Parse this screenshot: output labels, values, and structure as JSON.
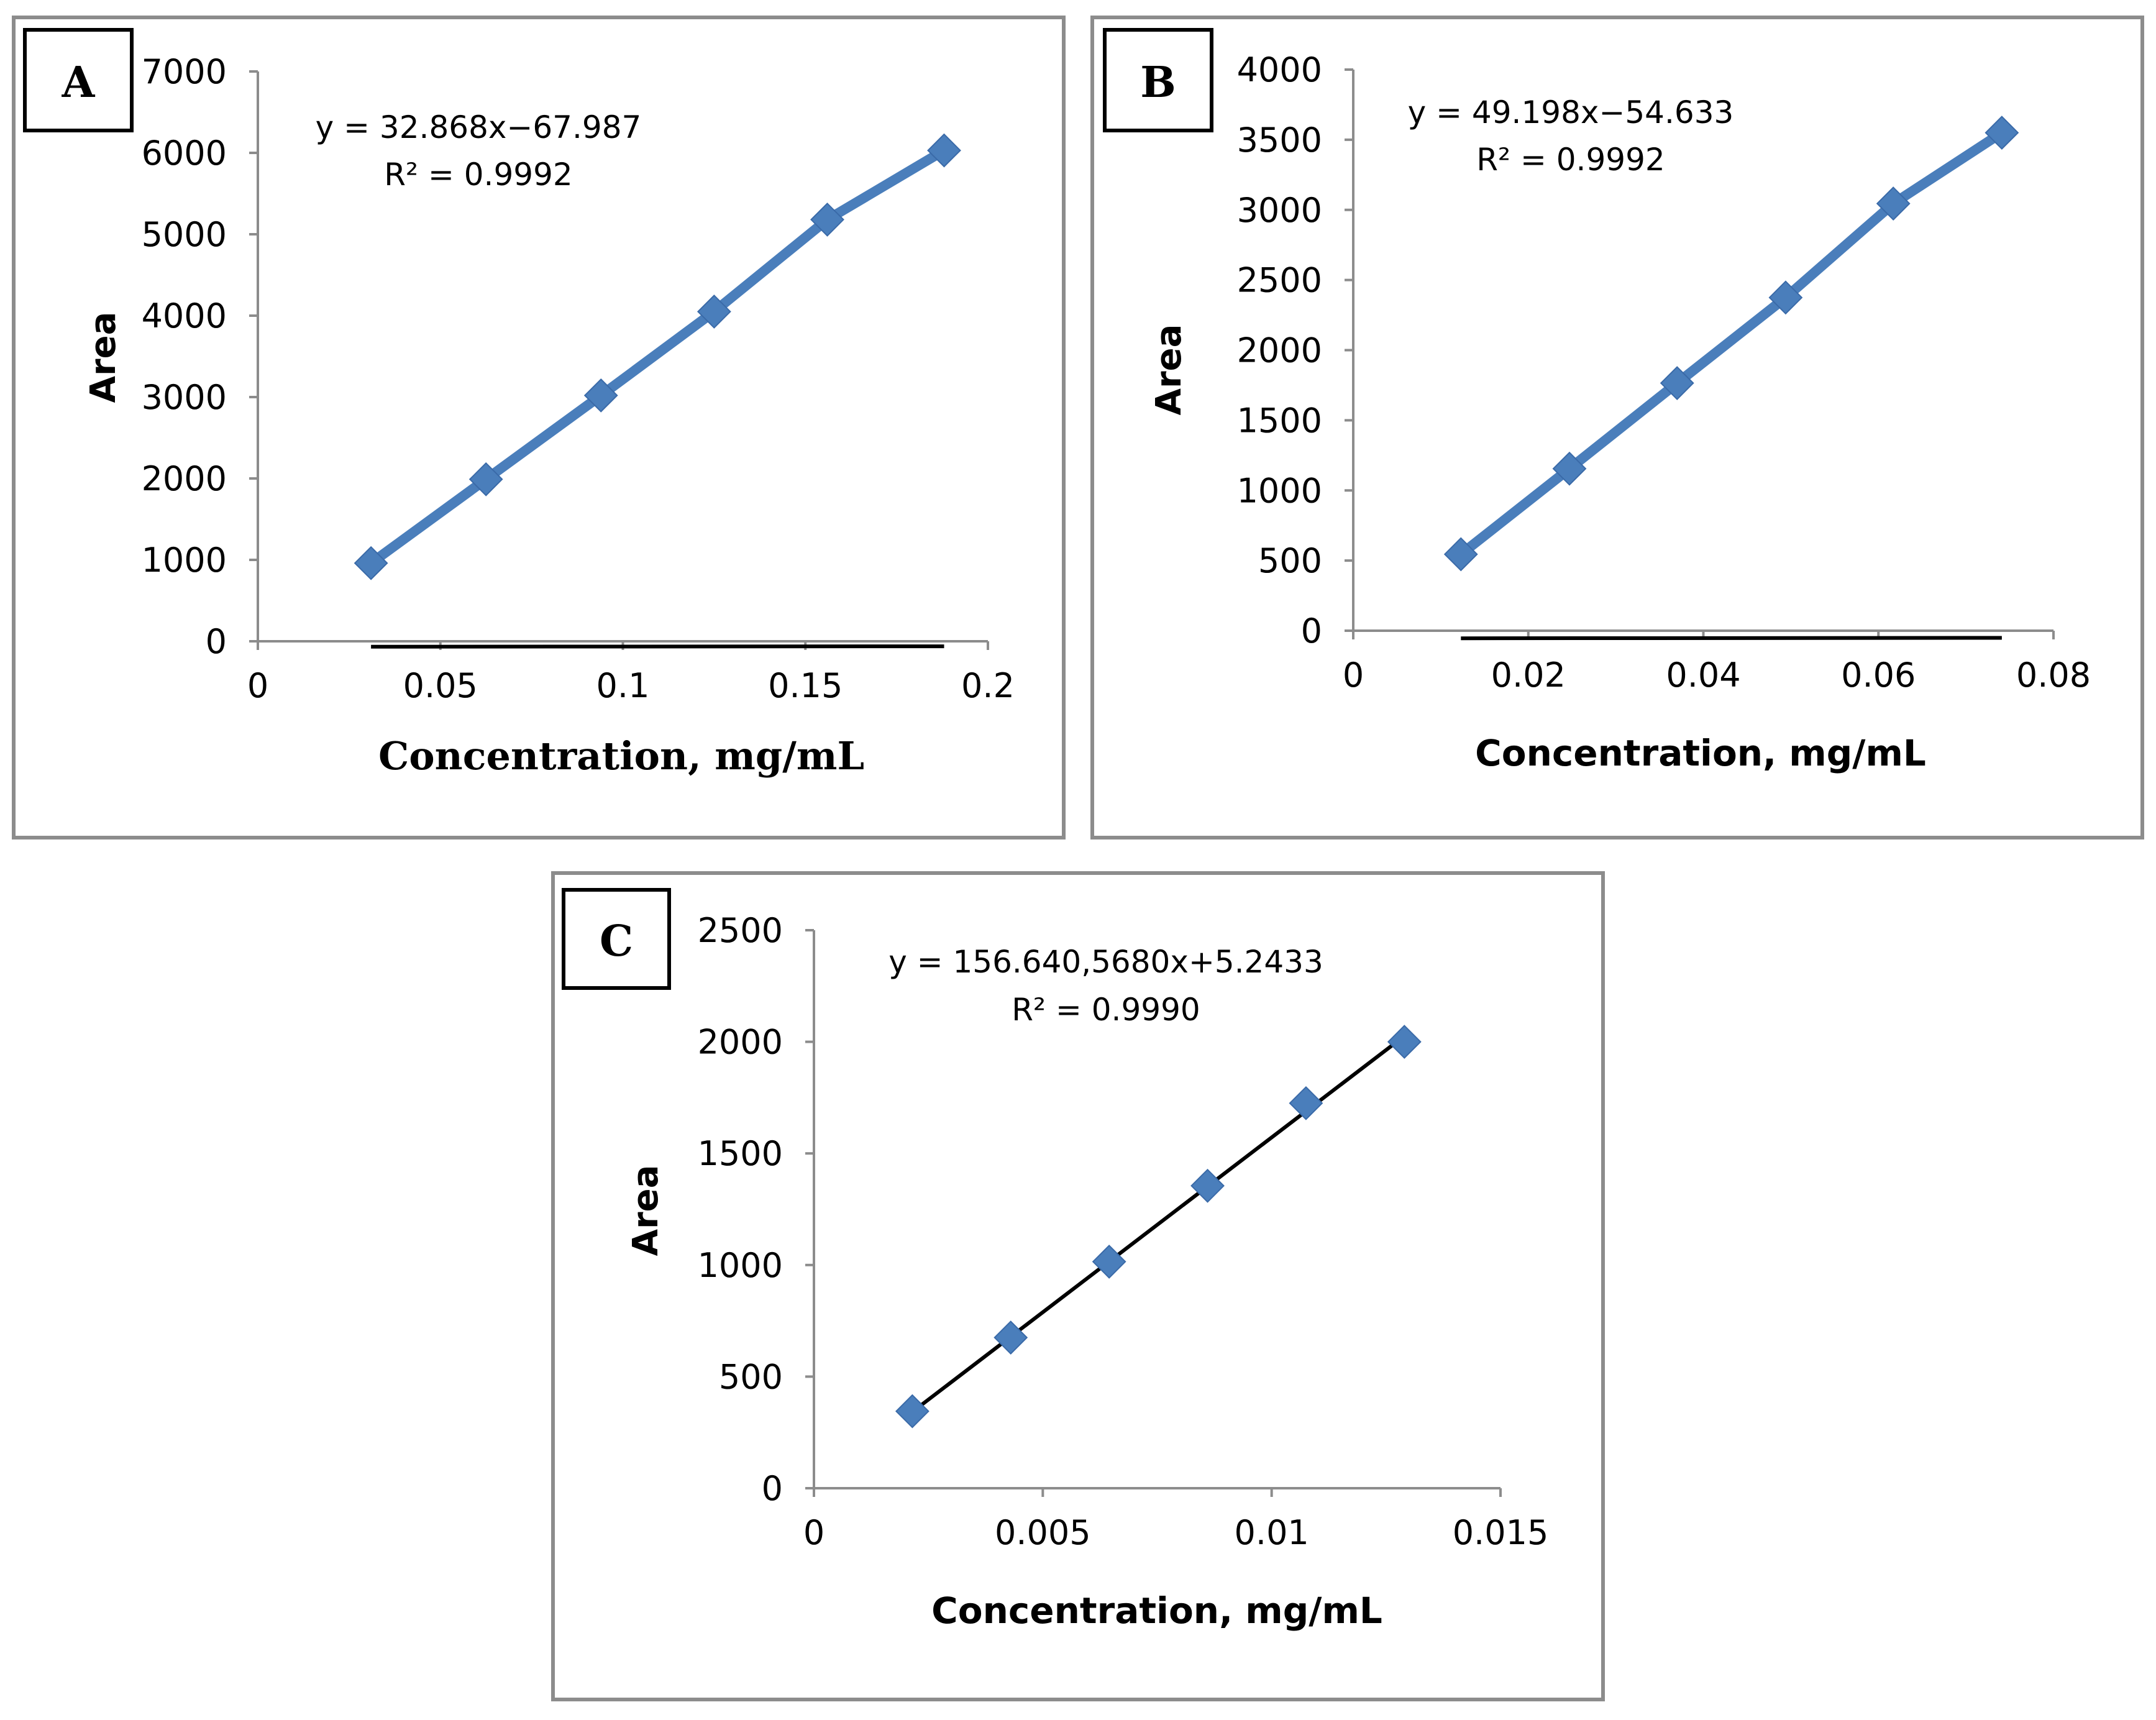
{
  "chart_data": [
    {
      "type": "scatter",
      "panel_label": "A",
      "xlabel": "Concentration, mg/mL",
      "ylabel": "Area",
      "xlim": [
        0,
        0.2
      ],
      "ylim": [
        0,
        7000
      ],
      "x_ticks": [
        0,
        0.05,
        0.1,
        0.15,
        0.2
      ],
      "x_tick_labels": [
        "0",
        "0.05",
        "0.1",
        "0.15",
        "0.2"
      ],
      "y_ticks": [
        0,
        1000,
        2000,
        3000,
        4000,
        5000,
        6000,
        7000
      ],
      "y_tick_labels": [
        "0",
        "1000",
        "2000",
        "3000",
        "4000",
        "5000",
        "6000",
        "7000"
      ],
      "series": [
        {
          "name": "Area",
          "x": [
            0.031,
            0.0625,
            0.094,
            0.125,
            0.156,
            0.188
          ],
          "y": [
            960,
            1990,
            3020,
            4050,
            5180,
            6030
          ]
        }
      ],
      "trendline": {
        "slope": 32.868,
        "intercept": -67.987
      },
      "equation": "y = 32.868x−67.987",
      "r_squared": "R² = 0.9992",
      "grid": false
    },
    {
      "type": "scatter",
      "panel_label": "B",
      "xlabel": "Concentration, mg/mL",
      "ylabel": "Area",
      "xlim": [
        0,
        0.08
      ],
      "ylim": [
        0,
        4000
      ],
      "x_ticks": [
        0,
        0.02,
        0.04,
        0.06,
        0.08
      ],
      "x_tick_labels": [
        "0",
        "0.02",
        "0.04",
        "0.06",
        "0.08"
      ],
      "y_ticks": [
        0,
        500,
        1000,
        1500,
        2000,
        2500,
        3000,
        3500,
        4000
      ],
      "y_tick_labels": [
        "0",
        "500",
        "1000",
        "1500",
        "2000",
        "2500",
        "3000",
        "3500",
        "4000"
      ],
      "series": [
        {
          "name": "Area",
          "x": [
            0.0123,
            0.0247,
            0.037,
            0.0494,
            0.0617,
            0.0741
          ],
          "y": [
            545,
            1155,
            1765,
            2375,
            3045,
            3550
          ]
        }
      ],
      "trendline": {
        "slope": 49.198,
        "intercept": -54.633
      },
      "equation": "y = 49.198x−54.633",
      "r_squared": "R² = 0.9992",
      "grid": false
    },
    {
      "type": "scatter",
      "panel_label": "C",
      "xlabel": "Concentration, mg/mL",
      "ylabel": "Area",
      "xlim": [
        0,
        0.015
      ],
      "ylim": [
        0,
        2500
      ],
      "x_ticks": [
        0,
        0.005,
        0.01,
        0.015
      ],
      "x_tick_labels": [
        "0",
        "0.005",
        "0.01",
        "0.015"
      ],
      "y_ticks": [
        0,
        500,
        1000,
        1500,
        2000,
        2500
      ],
      "y_tick_labels": [
        "0",
        "500",
        "1000",
        "1500",
        "2000",
        "2500"
      ],
      "series": [
        {
          "name": "Area",
          "x": [
            0.00215,
            0.0043,
            0.00645,
            0.0086,
            0.01075,
            0.0129
          ],
          "y": [
            345,
            675,
            1015,
            1355,
            1725,
            2000
          ]
        }
      ],
      "trendline": {
        "slope": 156640.568,
        "intercept": 5.2433
      },
      "equation": "y = 156.640,5680x+5.2433",
      "r_squared": "R² = 0.9990",
      "grid": false
    }
  ]
}
